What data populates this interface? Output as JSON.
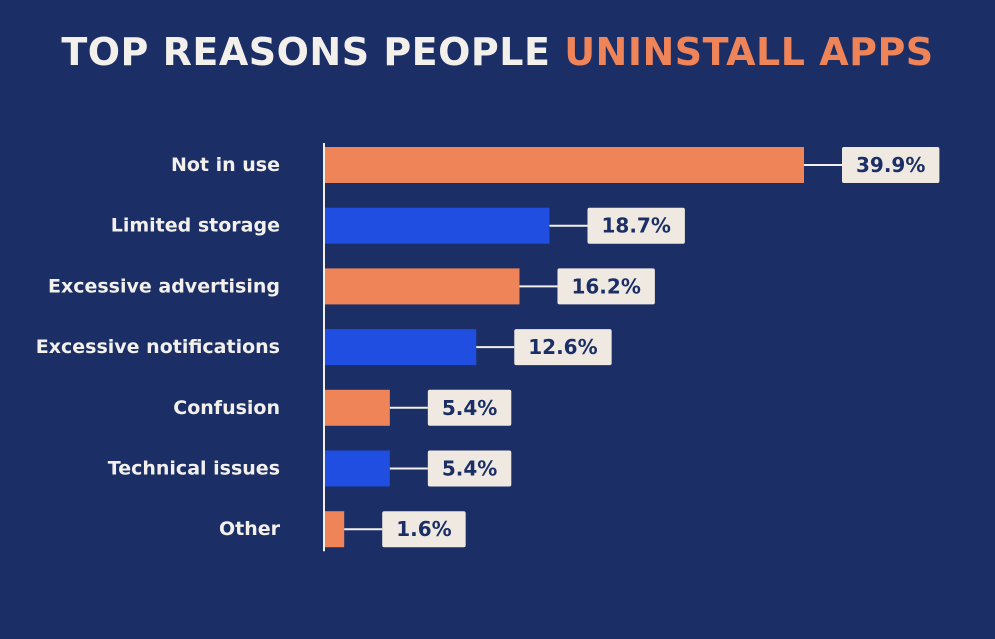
{
  "title_part1": "TOP REASONS PEOPLE ",
  "title_part2": "UNINSTALL APPS",
  "colors": {
    "background": "#1b2f66",
    "title_white": "#f3f0ec",
    "accent_orange": "#f08459",
    "bar_blue": "#1f4ee0",
    "label_box": "#efe9e1"
  },
  "chart_data": {
    "type": "bar",
    "orientation": "horizontal",
    "title": "TOP REASONS PEOPLE UNINSTALL APPS",
    "categories": [
      "Not in use",
      "Limited storage",
      "Excessive advertising",
      "Excessive notifications",
      "Confusion",
      "Technical issues",
      "Other"
    ],
    "values": [
      39.9,
      18.7,
      16.2,
      12.6,
      5.4,
      5.4,
      1.6
    ],
    "value_labels": [
      "39.9%",
      "18.7%",
      "16.2%",
      "12.6%",
      "5.4%",
      "5.4%",
      "1.6%"
    ],
    "bar_colors": [
      "#f08459",
      "#1f4ee0",
      "#f08459",
      "#1f4ee0",
      "#f08459",
      "#1f4ee0",
      "#f08459"
    ],
    "xlabel": "",
    "ylabel": "",
    "xlim": [
      0,
      39.9
    ]
  }
}
